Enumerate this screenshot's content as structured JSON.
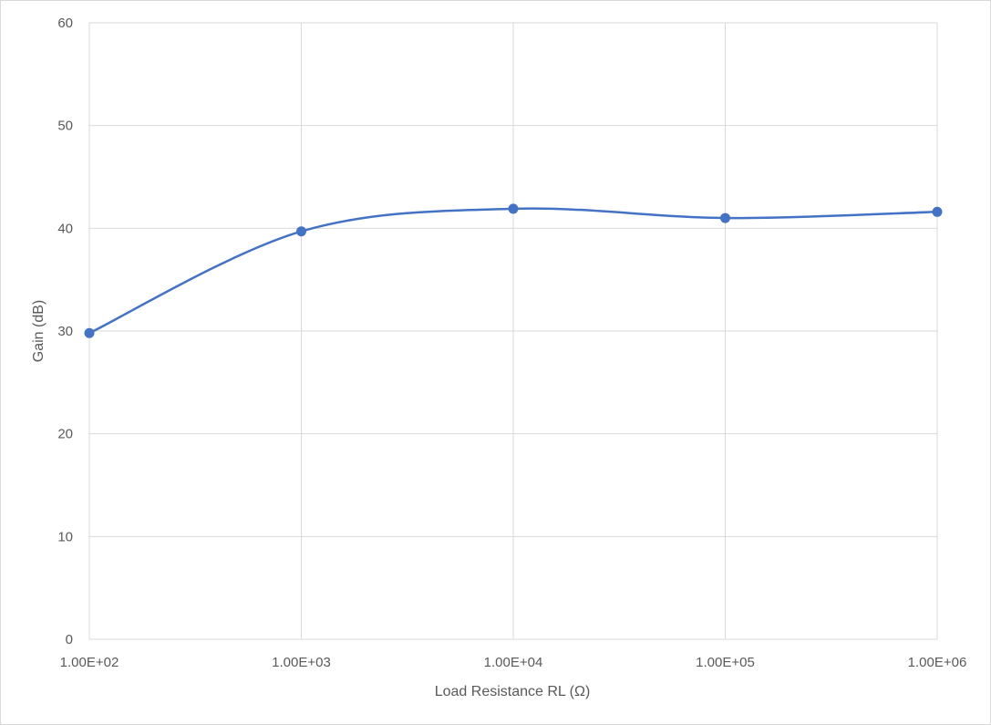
{
  "chart_data": {
    "type": "line",
    "title": "",
    "xlabel": "Load Resistance RL (Ω)",
    "ylabel": "Gain (dB)",
    "x_scale": "log",
    "xlim": [
      100,
      1000000
    ],
    "ylim": [
      0,
      60
    ],
    "x_tick_values": [
      100,
      1000,
      10000,
      100000,
      1000000
    ],
    "x_tick_labels": [
      "1.00E+02",
      "1.00E+03",
      "1.00E+04",
      "1.00E+05",
      "1.00E+06"
    ],
    "y_tick_values": [
      0,
      10,
      20,
      30,
      40,
      50,
      60
    ],
    "y_tick_labels": [
      "0",
      "10",
      "20",
      "30",
      "40",
      "50",
      "60"
    ],
    "grid": true,
    "smoothed": true,
    "markers": true,
    "legend": "none",
    "series": [
      {
        "color": "#4472c4",
        "x": [
          100,
          1000,
          10000,
          100000,
          1000000
        ],
        "y": [
          29.8,
          39.7,
          41.9,
          41.0,
          41.6
        ]
      }
    ]
  }
}
